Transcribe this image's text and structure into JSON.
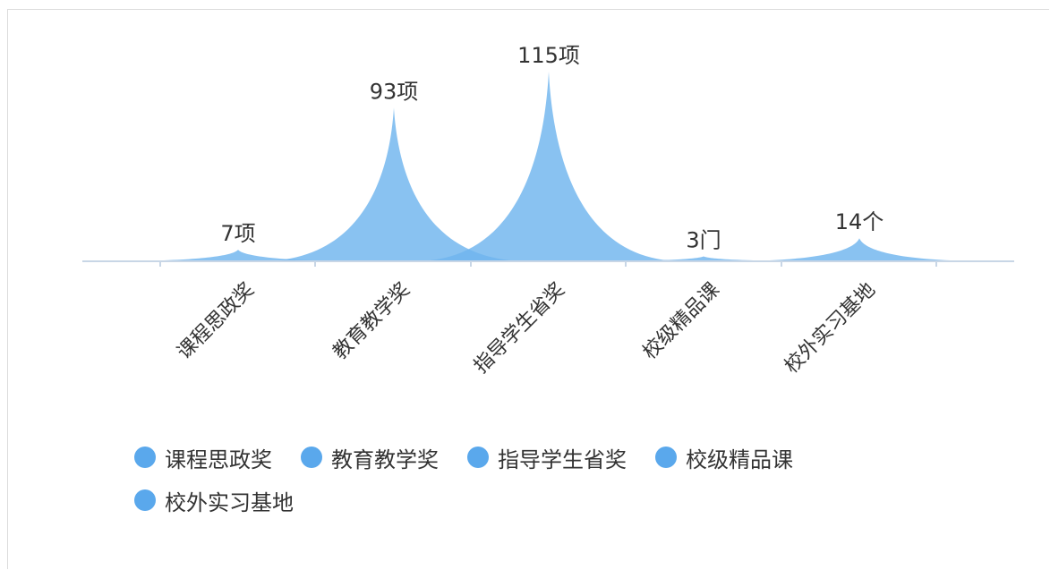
{
  "chart_data": {
    "type": "area",
    "categories": [
      "课程思政奖",
      "教育教学奖",
      "指导学生省奖",
      "校级精品课",
      "校外实习基地"
    ],
    "values": [
      7,
      93,
      115,
      3,
      14
    ],
    "value_labels": [
      "7项",
      "93项",
      "115项",
      "3门",
      "14个"
    ],
    "legend": [
      "课程思政奖",
      "教育教学奖",
      "指导学生省奖",
      "校级精品课",
      "校外实习基地"
    ],
    "legend_placement": "bottom",
    "ylim": [
      0,
      115
    ],
    "grid": false,
    "colors": {
      "area": "#6fb4ee",
      "legend_dot": "#5aa8ec",
      "axis": "#c8d6e6"
    }
  }
}
